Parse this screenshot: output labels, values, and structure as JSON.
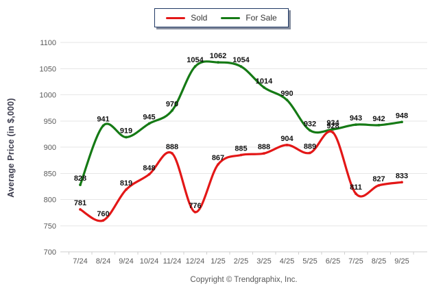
{
  "legend": {
    "items": [
      {
        "label": "Sold"
      },
      {
        "label": "For Sale"
      }
    ]
  },
  "y_axis_title": "Average Price (in $,000)",
  "footer": {
    "text": "Copyright © Trendgraphix, Inc."
  },
  "chart_data": {
    "type": "line",
    "title": "",
    "xlabel": "",
    "ylabel": "Average Price (in $,000)",
    "categories": [
      "7/24",
      "8/24",
      "9/24",
      "10/24",
      "11/24",
      "12/24",
      "1/25",
      "2/25",
      "3/25",
      "4/25",
      "5/25",
      "6/25",
      "7/25",
      "8/25",
      "9/25"
    ],
    "series": [
      {
        "name": "Sold",
        "color": "#e31717",
        "values": [
          781,
          760,
          819,
          848,
          888,
          776,
          867,
          885,
          888,
          904,
          889,
          928,
          811,
          827,
          833
        ]
      },
      {
        "name": "For Sale",
        "color": "#157a15",
        "values": [
          828,
          941,
          919,
          945,
          970,
          1054,
          1062,
          1054,
          1014,
          990,
          932,
          934,
          943,
          942,
          948
        ]
      }
    ],
    "ylim": [
      700,
      1100
    ],
    "yticks": [
      700,
      750,
      800,
      850,
      900,
      950,
      1000,
      1050,
      1100
    ],
    "grid": true,
    "legend_position": "top",
    "data_labels": true,
    "label_color": "#111111",
    "tick_label_color": "#595959",
    "grid_color": "#e6e6e6",
    "axis_color": "#cfcfcf",
    "legend_border_color": "#1f3864"
  }
}
